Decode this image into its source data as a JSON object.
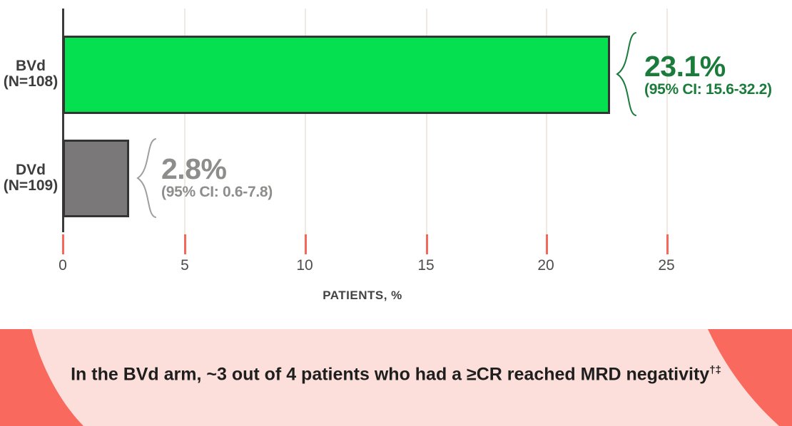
{
  "chart_data": {
    "type": "bar",
    "orientation": "horizontal",
    "title": "",
    "xlabel": "PATIENTS, %",
    "ylabel": "",
    "xlim": [
      0,
      28
    ],
    "x_ticks": [
      0,
      5,
      10,
      15,
      20,
      25
    ],
    "grid": "vertical-light",
    "legend": "none",
    "series": [
      {
        "name": "BVd",
        "n_label": "(N=108)",
        "value": 23.1,
        "ci_low": 15.6,
        "ci_high": 32.2,
        "bar_color": "#04e04f"
      },
      {
        "name": "DVd",
        "n_label": "(N=109)",
        "value": 2.8,
        "ci_low": 0.6,
        "ci_high": 7.8,
        "bar_color": "#7a7878"
      }
    ]
  },
  "axis": {
    "tick_labels": [
      "0",
      "5",
      "10",
      "15",
      "20",
      "25"
    ],
    "title": "PATIENTS, %"
  },
  "bvd": {
    "label_line1": "BVd",
    "label_line2": "(N=108)",
    "value_text": "23.1%",
    "ci_text": "(95% CI: 15.6-32.2)"
  },
  "dvd": {
    "label_line1": "DVd",
    "label_line2": "(N=109)",
    "value_text": "2.8%",
    "ci_text": "(95% CI: 0.6-7.8)"
  },
  "banner": {
    "text": "In the BVd arm, ~3 out of 4 patients who had a ≥CR reached MRD negativity",
    "superscript": "†‡"
  },
  "colors": {
    "bvd_bar": "#04e04f",
    "bvd_text": "#1b7b3b",
    "dvd_bar": "#7a7878",
    "dvd_text": "#8d8d8c",
    "bar_border": "#343434",
    "axis_line": "#3c3c3c",
    "gridline": "#efe9e1",
    "tick_mark": "#f5695c",
    "tick_label": "#4d4d4d",
    "banner_bg": "#fcdfda",
    "banner_accent": "#f9695d",
    "banner_text": "#1e1e1e"
  }
}
